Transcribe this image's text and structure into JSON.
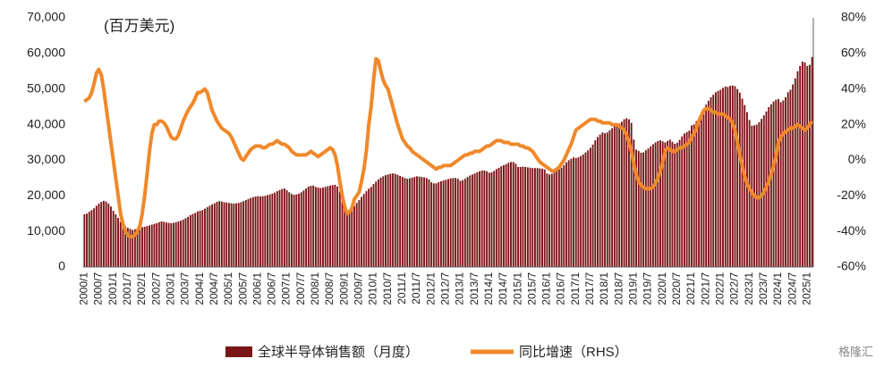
{
  "chart_data": {
    "type": "bar-line",
    "unit_label": "(百万美元)",
    "watermark": "格隆汇",
    "categories": [
      "2000/1",
      null,
      null,
      null,
      null,
      null,
      "2000/7",
      null,
      null,
      null,
      null,
      null,
      "2001/1",
      null,
      null,
      null,
      null,
      null,
      "2001/7",
      null,
      null,
      null,
      null,
      null,
      "2002/1",
      null,
      null,
      null,
      null,
      null,
      "2002/7",
      null,
      null,
      null,
      null,
      null,
      "2003/1",
      null,
      null,
      null,
      null,
      null,
      "2003/7",
      null,
      null,
      null,
      null,
      null,
      "2004/1",
      null,
      null,
      null,
      null,
      null,
      "2004/7",
      null,
      null,
      null,
      null,
      null,
      "2005/1",
      null,
      null,
      null,
      null,
      null,
      "2005/7",
      null,
      null,
      null,
      null,
      null,
      "2006/1",
      null,
      null,
      null,
      null,
      null,
      "2006/7",
      null,
      null,
      null,
      null,
      null,
      "2007/1",
      null,
      null,
      null,
      null,
      null,
      "2007/7",
      null,
      null,
      null,
      null,
      null,
      "2008/1",
      null,
      null,
      null,
      null,
      null,
      "2008/7",
      null,
      null,
      null,
      null,
      null,
      "2009/1",
      null,
      null,
      null,
      null,
      null,
      "2009/7",
      null,
      null,
      null,
      null,
      null,
      "2010/1",
      null,
      null,
      null,
      null,
      null,
      "2010/7",
      null,
      null,
      null,
      null,
      null,
      "2011/1",
      null,
      null,
      null,
      null,
      null,
      "2011/7",
      null,
      null,
      null,
      null,
      null,
      "2012/1",
      null,
      null,
      null,
      null,
      null,
      "2012/7",
      null,
      null,
      null,
      null,
      null,
      "2013/1",
      null,
      null,
      null,
      null,
      null,
      "2013/7",
      null,
      null,
      null,
      null,
      null,
      "2014/1",
      null,
      null,
      null,
      null,
      null,
      "2014/7",
      null,
      null,
      null,
      null,
      null,
      "2015/1",
      null,
      null,
      null,
      null,
      null,
      "2015/7",
      null,
      null,
      null,
      null,
      null,
      "2016/1",
      null,
      null,
      null,
      null,
      null,
      "2016/7",
      null,
      null,
      null,
      null,
      null,
      "2017/1",
      null,
      null,
      null,
      null,
      null,
      "2017/7",
      null,
      null,
      null,
      null,
      null,
      "2018/1",
      null,
      null,
      null,
      null,
      null,
      "2018/7",
      null,
      null,
      null,
      null,
      null,
      "2019/1",
      null,
      null,
      null,
      null,
      null,
      "2019/7",
      null,
      null,
      null,
      null,
      null,
      "2020/1",
      null,
      null,
      null,
      null,
      null,
      "2020/7",
      null,
      null,
      null,
      null,
      null,
      "2021/1",
      null,
      null,
      null,
      null,
      null,
      "2021/7",
      null,
      null,
      null,
      null,
      null,
      "2022/1",
      null,
      null,
      null,
      null,
      null,
      "2022/7",
      null,
      null,
      null,
      null,
      null,
      "2023/1",
      null,
      null,
      null,
      null,
      null,
      "2023/7",
      null,
      null,
      null,
      null,
      null,
      "2024/1",
      null,
      null,
      null,
      null,
      null,
      "2024/7",
      null,
      null,
      null,
      null,
      null,
      "2025/1",
      null,
      null
    ],
    "series": [
      {
        "name": "全球半导体销售额（月度）",
        "type": "bar",
        "color": "#7b1416",
        "values": [
          14800,
          15000,
          15500,
          16000,
          16500,
          17200,
          17800,
          18300,
          18600,
          18400,
          17800,
          17000,
          15800,
          14800,
          13800,
          12700,
          12000,
          11400,
          11000,
          10700,
          10400,
          10600,
          10900,
          11100,
          11200,
          11300,
          11500,
          11700,
          11900,
          12100,
          12300,
          12600,
          12800,
          12700,
          12500,
          12400,
          12300,
          12400,
          12600,
          12800,
          13000,
          13300,
          13700,
          14100,
          14600,
          14900,
          15200,
          15600,
          15800,
          16000,
          16400,
          16800,
          17200,
          17600,
          17900,
          18300,
          18500,
          18400,
          18200,
          18100,
          18000,
          17900,
          17800,
          17900,
          18000,
          18200,
          18500,
          18800,
          19100,
          19400,
          19600,
          19800,
          19900,
          19800,
          19900,
          20000,
          20200,
          20400,
          20600,
          20900,
          21300,
          21600,
          21900,
          22100,
          21600,
          21000,
          20500,
          20300,
          20400,
          20600,
          21000,
          21500,
          22100,
          22600,
          22800,
          22900,
          22500,
          22300,
          22200,
          22300,
          22500,
          22700,
          22900,
          23000,
          23100,
          22600,
          21200,
          19200,
          17000,
          15600,
          15800,
          16400,
          17200,
          18000,
          18800,
          19700,
          20500,
          21300,
          22000,
          22500,
          23300,
          24000,
          24600,
          25100,
          25500,
          25800,
          26000,
          26200,
          26300,
          26200,
          25900,
          25600,
          25300,
          25000,
          24800,
          24900,
          25100,
          25300,
          25500,
          25400,
          25300,
          25200,
          25000,
          24600,
          23800,
          23500,
          23500,
          23800,
          24100,
          24300,
          24500,
          24700,
          24900,
          25000,
          25000,
          24800,
          24200,
          24400,
          24800,
          25300,
          25700,
          26000,
          26300,
          26600,
          26900,
          27100,
          27100,
          26900,
          26500,
          26600,
          27000,
          27500,
          27900,
          28300,
          28600,
          28900,
          29300,
          29500,
          29500,
          29000,
          28100,
          28100,
          28200,
          28100,
          28000,
          27900,
          27800,
          27800,
          27800,
          27700,
          27600,
          27400,
          26300,
          26000,
          26200,
          26600,
          27000,
          27400,
          27900,
          28600,
          29400,
          30000,
          30400,
          30800,
          30600,
          30800,
          31200,
          31600,
          32200,
          32800,
          33500,
          34400,
          35600,
          36500,
          37200,
          37800,
          37600,
          37800,
          38400,
          39000,
          39500,
          40000,
          40300,
          40800,
          41500,
          41800,
          41500,
          40500,
          35800,
          33000,
          32600,
          32100,
          32200,
          32800,
          33300,
          33900,
          34500,
          35000,
          35400,
          35600,
          35300,
          35000,
          35400,
          35800,
          35200,
          34600,
          34900,
          35700,
          36700,
          37500,
          37900,
          38300,
          39800,
          40100,
          41000,
          41800,
          43000,
          44500,
          45600,
          46700,
          47700,
          48400,
          49100,
          49500,
          49800,
          50300,
          50700,
          50600,
          50900,
          51000,
          50800,
          50000,
          49000,
          47300,
          45500,
          43500,
          41300,
          39700,
          39800,
          40000,
          40700,
          41600,
          42600,
          43700,
          44900,
          45700,
          46500,
          47000,
          47200,
          46300,
          46800,
          47700,
          49100,
          49800,
          51300,
          53000,
          55000,
          56500,
          57700,
          57500,
          56500,
          56800,
          59000
        ]
      },
      {
        "name": "同比增速（RHS）",
        "type": "line",
        "axis": "y2",
        "color": "#f0882a",
        "values": [
          33,
          34,
          35,
          38,
          43,
          49,
          51,
          48,
          40,
          30,
          20,
          10,
          0,
          -10,
          -20,
          -30,
          -36,
          -40,
          -42,
          -43,
          -43,
          -42,
          -40,
          -37,
          -30,
          -20,
          -8,
          5,
          15,
          20,
          20,
          22,
          22,
          21,
          19,
          16,
          13,
          12,
          12,
          14,
          18,
          22,
          25,
          28,
          30,
          32,
          35,
          38,
          38,
          39,
          40,
          38,
          33,
          28,
          25,
          22,
          20,
          18,
          17,
          16,
          15,
          13,
          10,
          7,
          4,
          1,
          0,
          2,
          4,
          6,
          7,
          8,
          8,
          8,
          7,
          7,
          8,
          9,
          9,
          10,
          11,
          10,
          9,
          9,
          8,
          7,
          5,
          4,
          3,
          3,
          3,
          3,
          3,
          4,
          5,
          4,
          3,
          2,
          3,
          4,
          5,
          6,
          7,
          6,
          3,
          -3,
          -12,
          -20,
          -26,
          -30,
          -29,
          -27,
          -22,
          -20,
          -18,
          -12,
          -5,
          5,
          20,
          30,
          45,
          57,
          56,
          50,
          45,
          42,
          40,
          35,
          30,
          25,
          20,
          16,
          12,
          10,
          8,
          7,
          5,
          4,
          3,
          2,
          1,
          0,
          -1,
          -2,
          -3,
          -4,
          -5,
          -4,
          -4,
          -3,
          -3,
          -3,
          -3,
          -2,
          -1,
          0,
          1,
          2,
          3,
          3,
          4,
          4,
          5,
          5,
          5,
          6,
          7,
          8,
          8,
          9,
          10,
          11,
          11,
          11,
          10,
          10,
          10,
          9,
          9,
          9,
          9,
          8,
          8,
          7,
          7,
          6,
          5,
          3,
          1,
          -1,
          -2,
          -3,
          -4,
          -5,
          -6,
          -6,
          -5,
          -4,
          -2,
          0,
          3,
          6,
          9,
          13,
          17,
          18,
          19,
          20,
          21,
          22,
          23,
          23,
          23,
          22,
          22,
          21,
          21,
          21,
          21,
          20,
          20,
          20,
          19,
          18,
          17,
          14,
          10,
          5,
          -2,
          -8,
          -12,
          -14,
          -15,
          -16,
          -16,
          -16,
          -15,
          -13,
          -10,
          -6,
          -1,
          5,
          7,
          6,
          5,
          5,
          6,
          7,
          7,
          8,
          9,
          10,
          13,
          15,
          18,
          22,
          25,
          28,
          29,
          29,
          28,
          27,
          27,
          26,
          26,
          26,
          25,
          24,
          23,
          21,
          17,
          10,
          3,
          -3,
          -9,
          -13,
          -16,
          -18,
          -20,
          -21,
          -21,
          -20,
          -18,
          -15,
          -12,
          -8,
          -3,
          2,
          10,
          13,
          15,
          16,
          17,
          18,
          18,
          19,
          20,
          19,
          18,
          17,
          18,
          20,
          22
        ]
      }
    ],
    "ylim": [
      0,
      70000
    ],
    "yticks": [
      0,
      {
        "value": 10000,
        "label": "10,000"
      },
      {
        "value": 20000,
        "label": "20,000"
      },
      {
        "value": 30000,
        "label": "30,000"
      },
      {
        "value": 40000,
        "label": "40,000"
      },
      {
        "value": 50000,
        "label": "50,000"
      },
      {
        "value": 60000,
        "label": "60,000"
      },
      {
        "value": 70000,
        "label": "70,000"
      }
    ],
    "y2lim": [
      -60,
      80
    ],
    "y2ticks": [
      {
        "value": -60,
        "label": "-60%"
      },
      {
        "value": -40,
        "label": "-40%"
      },
      {
        "value": -20,
        "label": "-20%"
      },
      {
        "value": 0,
        "label": "0%"
      },
      {
        "value": 20,
        "label": "20%"
      },
      {
        "value": 40,
        "label": "40%"
      },
      {
        "value": 60,
        "label": "60%"
      },
      {
        "value": 80,
        "label": "80%"
      }
    ],
    "grid": false
  }
}
